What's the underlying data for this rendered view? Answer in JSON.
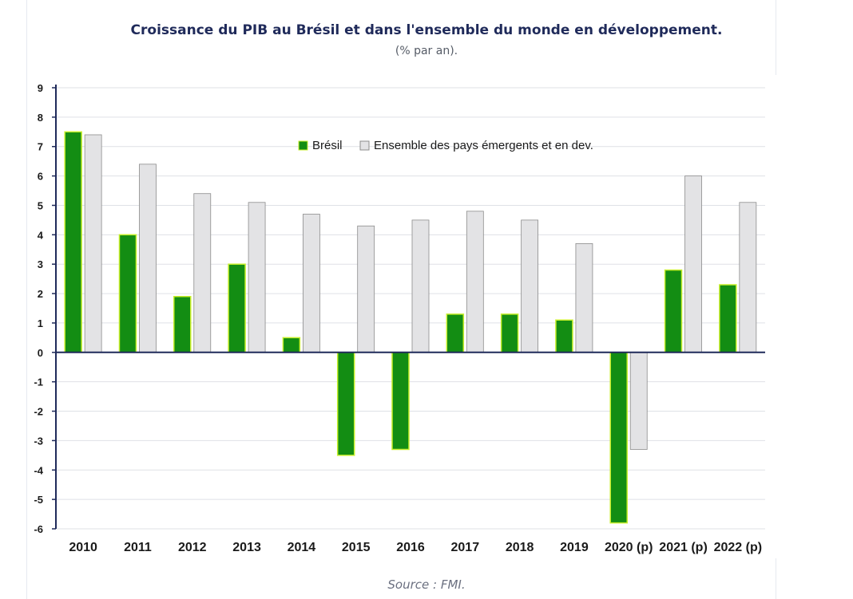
{
  "page": {
    "title": "Croissance du PIB au Brésil et dans l'ensemble du monde en développement.",
    "subtitle": "(% par an).",
    "source": "Source : FMI."
  },
  "chart_data": {
    "type": "bar",
    "categories": [
      "2010",
      "2011",
      "2012",
      "2013",
      "2014",
      "2015",
      "2016",
      "2017",
      "2018",
      "2019",
      "2020 (p)",
      "2021 (p)",
      "2022 (p)"
    ],
    "series": [
      {
        "name": "Brésil",
        "color": "#138d13",
        "values": [
          7.5,
          4.0,
          1.9,
          3.0,
          0.5,
          -3.5,
          -3.3,
          1.3,
          1.3,
          1.1,
          -5.8,
          2.8,
          2.3
        ]
      },
      {
        "name": "Ensemble des pays émergents et en dev.",
        "color": "#e3e3e5",
        "values": [
          7.4,
          6.4,
          5.4,
          5.1,
          4.7,
          4.3,
          4.5,
          4.8,
          4.5,
          3.7,
          -3.3,
          6.0,
          5.1
        ]
      }
    ],
    "yticks": [
      "9",
      "8",
      "7",
      "6",
      "5",
      "4",
      "3",
      "2",
      "1",
      "0",
      "-1",
      "-2",
      "-3",
      "-4",
      "-5",
      "-6"
    ],
    "ylim": [
      -6,
      9
    ],
    "grid": true,
    "legend_position": "top-center"
  }
}
